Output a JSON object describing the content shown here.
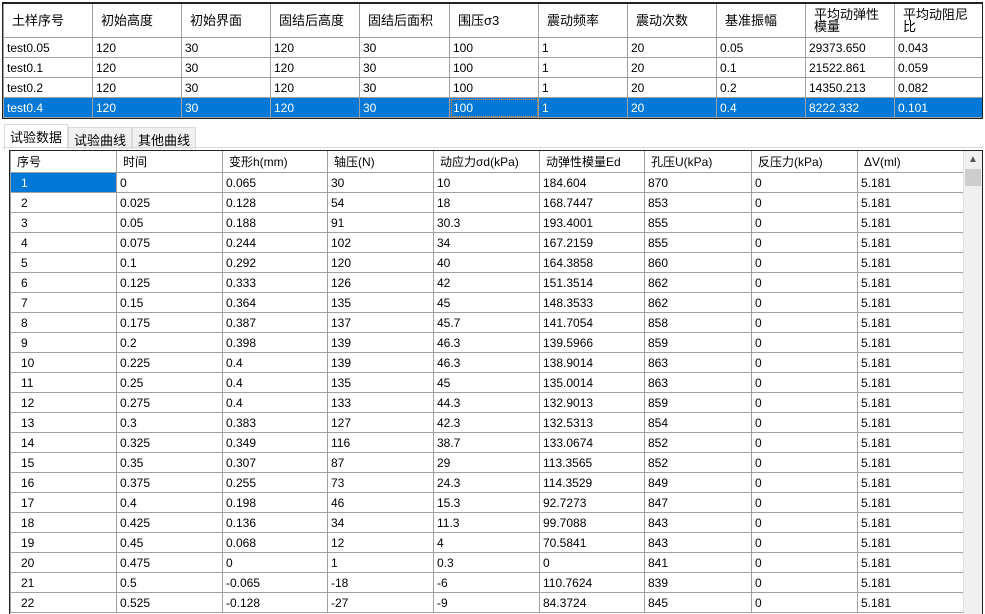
{
  "samples": {
    "columns": [
      "土样序号",
      "初始高度",
      "初始界面",
      "固结后高度",
      "固结后面积",
      "围压σ3",
      "震动频率",
      "震动次数",
      "基准振幅",
      "平均动弹性模量",
      "平均动阻尼比"
    ],
    "rows": [
      [
        "test0.05",
        "120",
        "30",
        "120",
        "30",
        "100",
        "1",
        "20",
        "0.05",
        "29373.650",
        "0.043"
      ],
      [
        "test0.1",
        "120",
        "30",
        "120",
        "30",
        "100",
        "1",
        "20",
        "0.1",
        "21522.861",
        "0.059"
      ],
      [
        "test0.2",
        "120",
        "30",
        "120",
        "30",
        "100",
        "1",
        "20",
        "0.2",
        "14350.213",
        "0.082"
      ],
      [
        "test0.4",
        "120",
        "30",
        "120",
        "30",
        "100",
        "1",
        "20",
        "0.4",
        "8222.332",
        "0.101"
      ]
    ],
    "selected_row": 3,
    "focused_col": 5
  },
  "tabs": [
    {
      "label": "试验数据",
      "active": true
    },
    {
      "label": "试验曲线",
      "active": false
    },
    {
      "label": "其他曲线",
      "active": false
    }
  ],
  "data_grid": {
    "columns": [
      "序号",
      "时间",
      "变形h(mm)",
      "轴压(N)",
      "动应力σd(kPa)",
      "动弹性模量Ed",
      "孔压U(kPa)",
      "反压力(kPa)",
      "ΔV(ml)"
    ],
    "rows": [
      [
        "1",
        "0",
        "0.065",
        "30",
        "10",
        "184.604",
        "870",
        "0",
        "5.181"
      ],
      [
        "2",
        "0.025",
        "0.128",
        "54",
        "18",
        "168.7447",
        "853",
        "0",
        "5.181"
      ],
      [
        "3",
        "0.05",
        "0.188",
        "91",
        "30.3",
        "193.4001",
        "855",
        "0",
        "5.181"
      ],
      [
        "4",
        "0.075",
        "0.244",
        "102",
        "34",
        "167.2159",
        "855",
        "0",
        "5.181"
      ],
      [
        "5",
        "0.1",
        "0.292",
        "120",
        "40",
        "164.3858",
        "860",
        "0",
        "5.181"
      ],
      [
        "6",
        "0.125",
        "0.333",
        "126",
        "42",
        "151.3514",
        "862",
        "0",
        "5.181"
      ],
      [
        "7",
        "0.15",
        "0.364",
        "135",
        "45",
        "148.3533",
        "862",
        "0",
        "5.181"
      ],
      [
        "8",
        "0.175",
        "0.387",
        "137",
        "45.7",
        "141.7054",
        "858",
        "0",
        "5.181"
      ],
      [
        "9",
        "0.2",
        "0.398",
        "139",
        "46.3",
        "139.5966",
        "859",
        "0",
        "5.181"
      ],
      [
        "10",
        "0.225",
        "0.4",
        "139",
        "46.3",
        "138.9014",
        "863",
        "0",
        "5.181"
      ],
      [
        "11",
        "0.25",
        "0.4",
        "135",
        "45",
        "135.0014",
        "863",
        "0",
        "5.181"
      ],
      [
        "12",
        "0.275",
        "0.4",
        "133",
        "44.3",
        "132.9013",
        "859",
        "0",
        "5.181"
      ],
      [
        "13",
        "0.3",
        "0.383",
        "127",
        "42.3",
        "132.5313",
        "854",
        "0",
        "5.181"
      ],
      [
        "14",
        "0.325",
        "0.349",
        "116",
        "38.7",
        "133.0674",
        "852",
        "0",
        "5.181"
      ],
      [
        "15",
        "0.35",
        "0.307",
        "87",
        "29",
        "113.3565",
        "852",
        "0",
        "5.181"
      ],
      [
        "16",
        "0.375",
        "0.255",
        "73",
        "24.3",
        "114.3529",
        "849",
        "0",
        "5.181"
      ],
      [
        "17",
        "0.4",
        "0.198",
        "46",
        "15.3",
        "92.7273",
        "847",
        "0",
        "5.181"
      ],
      [
        "18",
        "0.425",
        "0.136",
        "34",
        "11.3",
        "99.7088",
        "843",
        "0",
        "5.181"
      ],
      [
        "19",
        "0.45",
        "0.068",
        "12",
        "4",
        "70.5841",
        "843",
        "0",
        "5.181"
      ],
      [
        "20",
        "0.475",
        "0",
        "1",
        "0.3",
        "0",
        "841",
        "0",
        "5.181"
      ],
      [
        "21",
        "0.5",
        "-0.065",
        "-18",
        "-6",
        "110.7624",
        "839",
        "0",
        "5.181"
      ],
      [
        "22",
        "0.525",
        "-0.128",
        "-27",
        "-9",
        "84.3724",
        "845",
        "0",
        "5.181"
      ]
    ],
    "selected_row": 0
  },
  "scrollbar": {
    "up_icon": "chevron-up-icon",
    "position": 0
  }
}
